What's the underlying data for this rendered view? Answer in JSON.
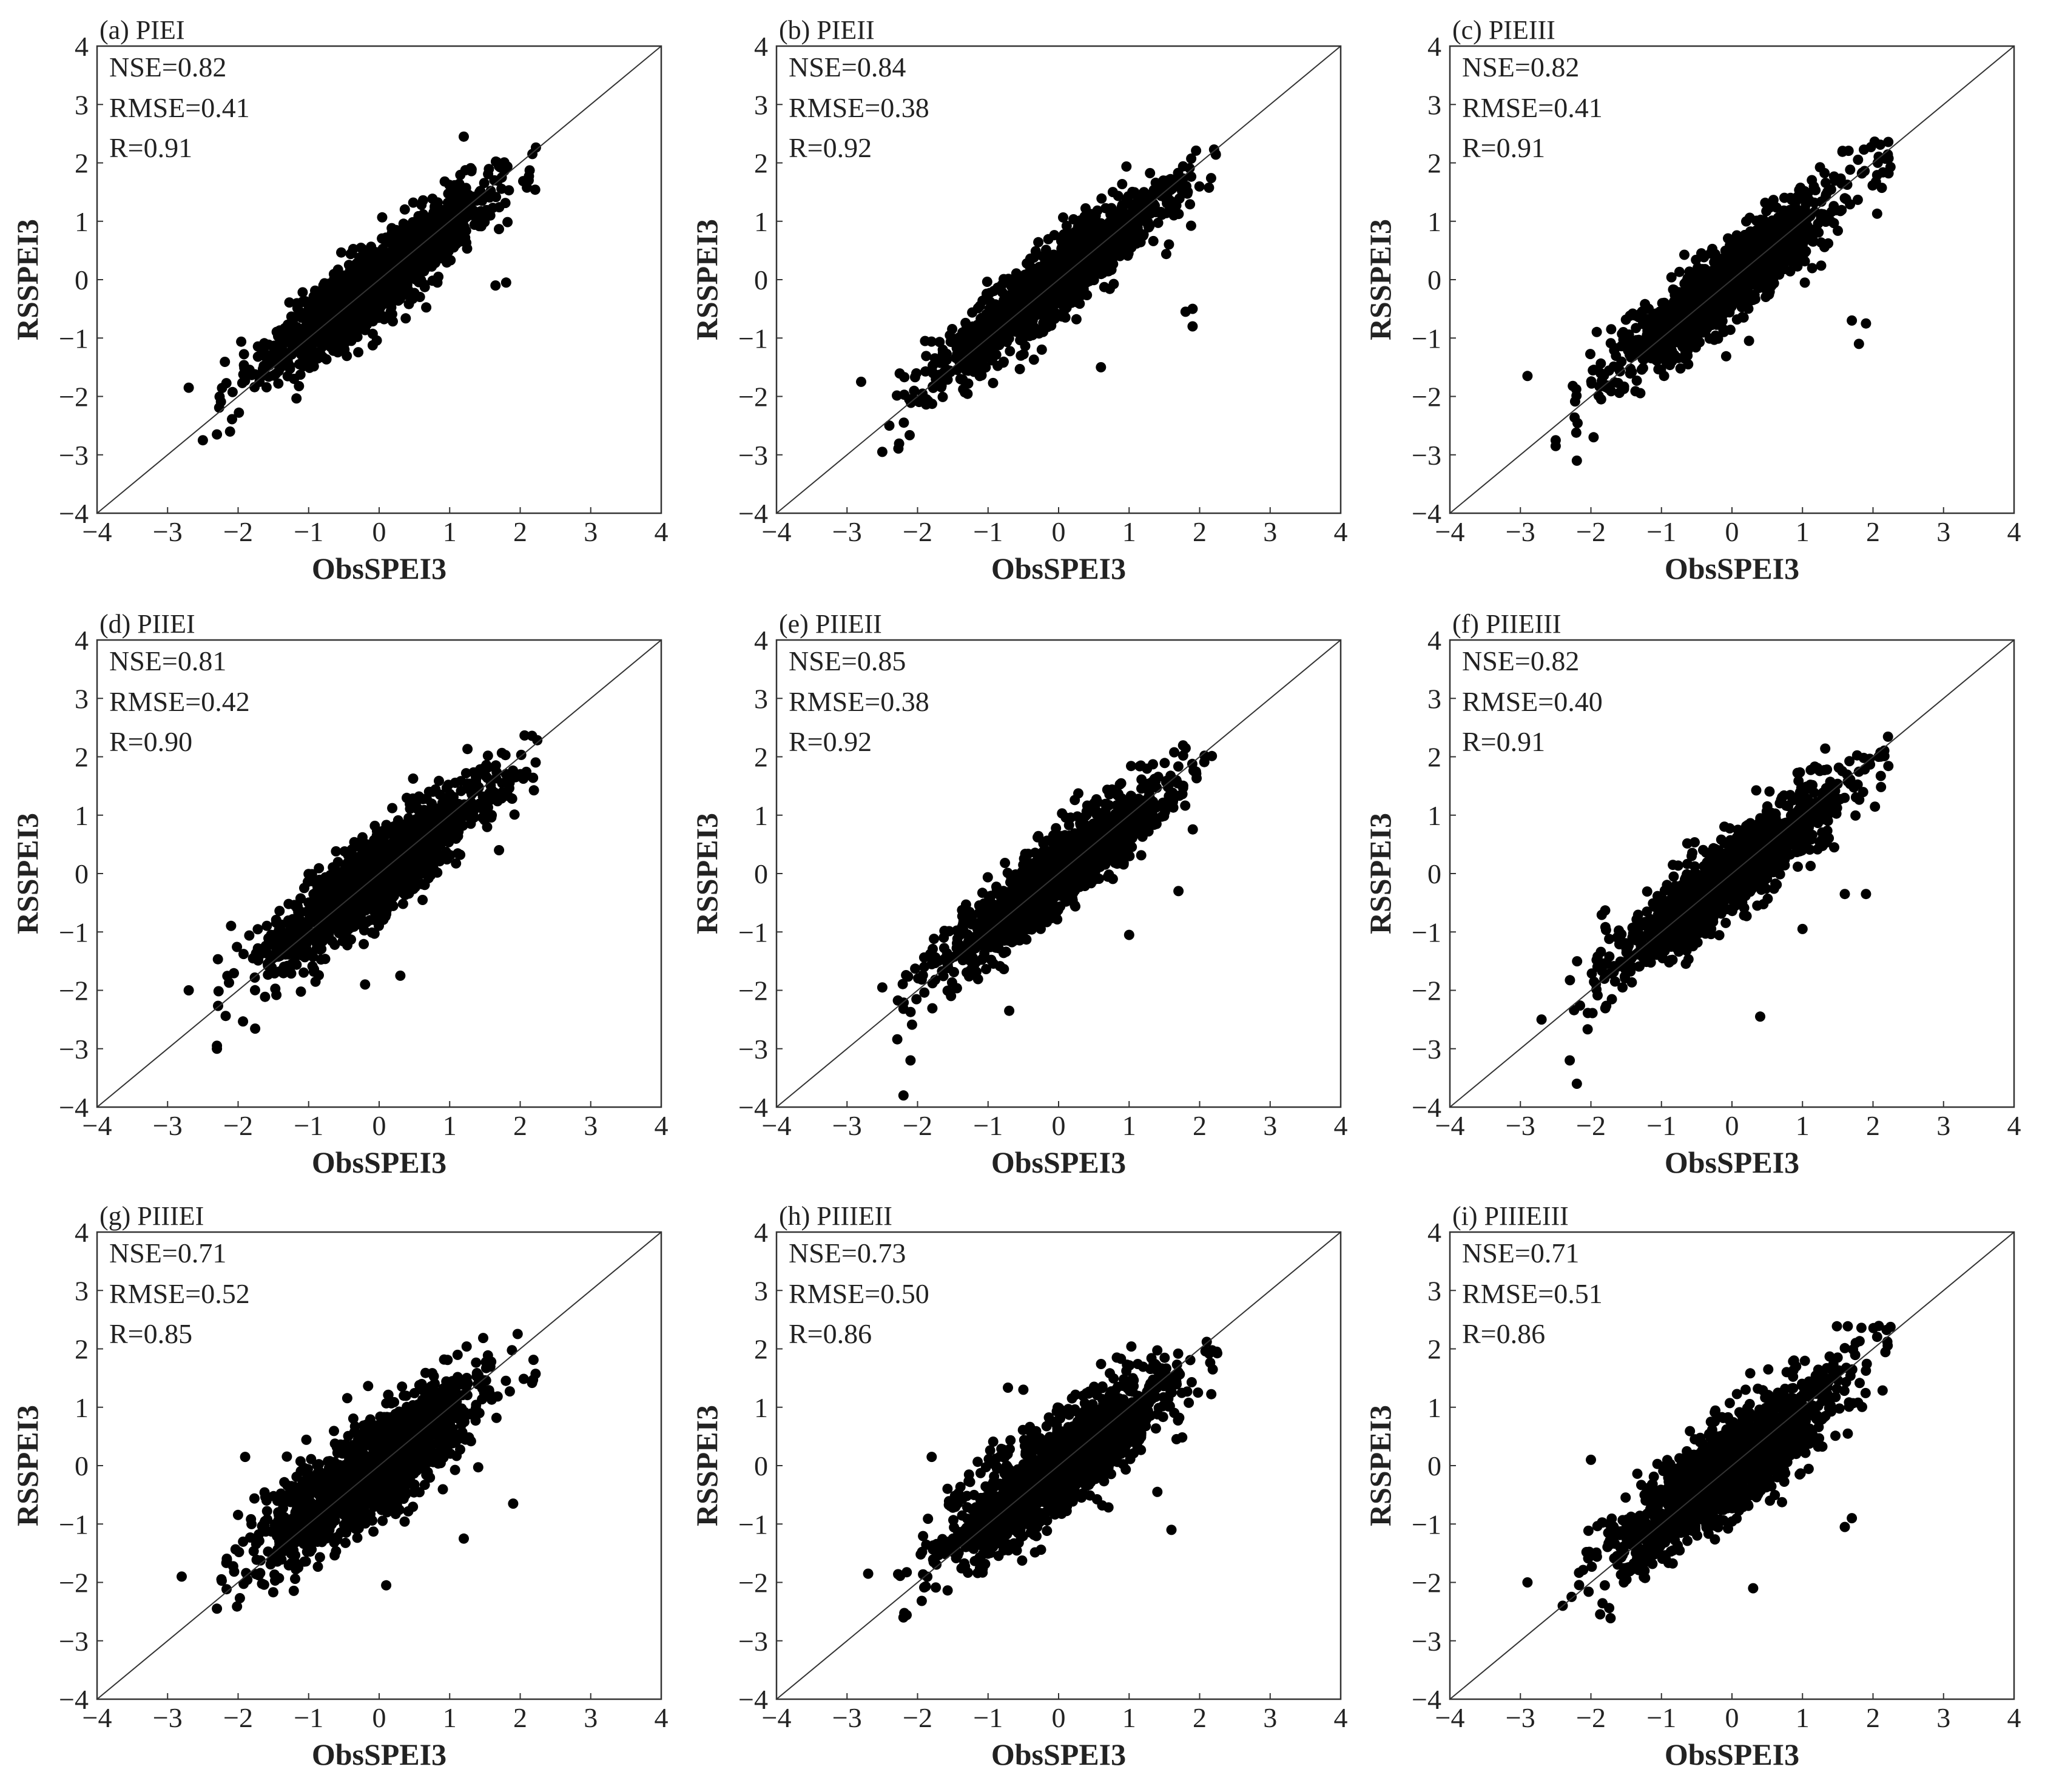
{
  "chart_data": [
    {
      "type": "scatter",
      "panel_label": "(a) PIEI",
      "xlabel": "ObsSPEI3",
      "ylabel": "RSSPEI3",
      "xlim": [
        -4,
        4
      ],
      "ylim": [
        -4,
        4
      ],
      "ticks": [
        "−4",
        "−3",
        "−2",
        "−1",
        "0",
        "1",
        "2",
        "3",
        "4"
      ],
      "stats": {
        "nse": "NSE=0.82",
        "rmse": "RMSE=0.41",
        "r": "R=0.91"
      },
      "series": [
        {
          "name": "points",
          "r": 0.91,
          "count": 1300,
          "seed": 11
        }
      ],
      "reference_line": "1:1",
      "outliers": [
        [
          -2.7,
          -1.85
        ],
        [
          -2.5,
          -2.75
        ],
        [
          -2.3,
          -2.65
        ],
        [
          1.8,
          -0.05
        ],
        [
          1.65,
          -0.1
        ],
        [
          1.2,
          2.45
        ]
      ]
    },
    {
      "type": "scatter",
      "panel_label": "(b) PIEII",
      "xlabel": "ObsSPEI3",
      "ylabel": "RSSPEI3",
      "xlim": [
        -4,
        4
      ],
      "ylim": [
        -4,
        4
      ],
      "ticks": [
        "−4",
        "−3",
        "−2",
        "−1",
        "0",
        "1",
        "2",
        "3",
        "4"
      ],
      "stats": {
        "nse": "NSE=0.84",
        "rmse": "RMSE=0.38",
        "r": "R=0.92"
      },
      "series": [
        {
          "name": "points",
          "r": 0.92,
          "count": 1300,
          "seed": 23
        }
      ],
      "reference_line": "1:1",
      "outliers": [
        [
          -2.8,
          -1.75
        ],
        [
          -2.5,
          -2.95
        ],
        [
          -2.4,
          -2.5
        ],
        [
          1.8,
          -0.55
        ],
        [
          1.9,
          -0.8
        ],
        [
          1.9,
          -0.5
        ],
        [
          0.6,
          -1.5
        ]
      ]
    },
    {
      "type": "scatter",
      "panel_label": "(c) PIEIII",
      "xlabel": "ObsSPEI3",
      "ylabel": "RSSPEI3",
      "xlim": [
        -4,
        4
      ],
      "ylim": [
        -4,
        4
      ],
      "ticks": [
        "−4",
        "−3",
        "−2",
        "−1",
        "0",
        "1",
        "2",
        "3",
        "4"
      ],
      "stats": {
        "nse": "NSE=0.82",
        "rmse": "RMSE=0.41",
        "r": "R=0.91"
      },
      "series": [
        {
          "name": "points",
          "r": 0.91,
          "count": 1300,
          "seed": 37
        }
      ],
      "reference_line": "1:1",
      "outliers": [
        [
          -2.9,
          -1.65
        ],
        [
          -2.5,
          -2.85
        ],
        [
          -2.2,
          -3.1
        ],
        [
          -2.5,
          -2.75
        ],
        [
          1.7,
          -0.7
        ],
        [
          1.8,
          -1.1
        ],
        [
          1.9,
          -0.75
        ]
      ]
    },
    {
      "type": "scatter",
      "panel_label": "(d) PIIEI",
      "xlabel": "ObsSPEI3",
      "ylabel": "RSSPEI3",
      "xlim": [
        -4,
        4
      ],
      "ylim": [
        -4,
        4
      ],
      "ticks": [
        "−4",
        "−3",
        "−2",
        "−1",
        "0",
        "1",
        "2",
        "3",
        "4"
      ],
      "stats": {
        "nse": "NSE=0.81",
        "rmse": "RMSE=0.42",
        "r": "R=0.90"
      },
      "series": [
        {
          "name": "points",
          "r": 0.9,
          "count": 1300,
          "seed": 41
        }
      ],
      "reference_line": "1:1",
      "outliers": [
        [
          -2.7,
          -2.0
        ],
        [
          -2.3,
          -2.95
        ],
        [
          -2.3,
          -3.0
        ],
        [
          -0.2,
          -1.9
        ],
        [
          0.3,
          -1.75
        ],
        [
          1.7,
          0.4
        ]
      ]
    },
    {
      "type": "scatter",
      "panel_label": "(e) PIIEII",
      "xlabel": "ObsSPEI3",
      "ylabel": "RSSPEI3",
      "xlim": [
        -4,
        4
      ],
      "ylim": [
        -4,
        4
      ],
      "ticks": [
        "−4",
        "−3",
        "−2",
        "−1",
        "0",
        "1",
        "2",
        "3",
        "4"
      ],
      "stats": {
        "nse": "NSE=0.85",
        "rmse": "RMSE=0.38",
        "r": "R=0.92"
      },
      "series": [
        {
          "name": "points",
          "r": 0.92,
          "count": 1300,
          "seed": 53
        }
      ],
      "reference_line": "1:1",
      "outliers": [
        [
          -2.2,
          -3.8
        ],
        [
          -2.5,
          -1.95
        ],
        [
          -2.1,
          -3.2
        ],
        [
          -0.7,
          -2.35
        ],
        [
          1.0,
          -1.05
        ],
        [
          1.7,
          -0.3
        ]
      ]
    },
    {
      "type": "scatter",
      "panel_label": "(f) PIIEIII",
      "xlabel": "ObsSPEI3",
      "ylabel": "RSSPEI3",
      "xlim": [
        -4,
        4
      ],
      "ylim": [
        -4,
        4
      ],
      "ticks": [
        "−4",
        "−3",
        "−2",
        "−1",
        "0",
        "1",
        "2",
        "3",
        "4"
      ],
      "stats": {
        "nse": "NSE=0.82",
        "rmse": "RMSE=0.40",
        "r": "R=0.91"
      },
      "series": [
        {
          "name": "points",
          "r": 0.91,
          "count": 1300,
          "seed": 67
        }
      ],
      "reference_line": "1:1",
      "outliers": [
        [
          -2.2,
          -3.6
        ],
        [
          -2.3,
          -3.2
        ],
        [
          -2.7,
          -2.5
        ],
        [
          0.4,
          -2.45
        ],
        [
          1.6,
          -0.35
        ],
        [
          1.9,
          -0.35
        ],
        [
          1.0,
          -0.95
        ]
      ]
    },
    {
      "type": "scatter",
      "panel_label": "(g) PIIIEI",
      "xlabel": "ObsSPEI3",
      "ylabel": "RSSPEI3",
      "xlim": [
        -4,
        4
      ],
      "ylim": [
        -4,
        4
      ],
      "ticks": [
        "−4",
        "−3",
        "−2",
        "−1",
        "0",
        "1",
        "2",
        "3",
        "4"
      ],
      "stats": {
        "nse": "NSE=0.71",
        "rmse": "RMSE=0.52",
        "r": "R=0.85"
      },
      "series": [
        {
          "name": "points",
          "r": 0.85,
          "count": 1400,
          "seed": 79
        }
      ],
      "reference_line": "1:1",
      "outliers": [
        [
          -2.8,
          -1.9
        ],
        [
          -2.3,
          -2.45
        ],
        [
          -1.9,
          0.15
        ],
        [
          0.1,
          -2.05
        ],
        [
          1.9,
          -0.65
        ],
        [
          1.2,
          -1.25
        ]
      ]
    },
    {
      "type": "scatter",
      "panel_label": "(h) PIIIEII",
      "xlabel": "ObsSPEI3",
      "ylabel": "RSSPEI3",
      "xlim": [
        -4,
        4
      ],
      "ylim": [
        -4,
        4
      ],
      "ticks": [
        "−4",
        "−3",
        "−2",
        "−1",
        "0",
        "1",
        "2",
        "3",
        "4"
      ],
      "stats": {
        "nse": "NSE=0.73",
        "rmse": "RMSE=0.50",
        "r": "R=0.86"
      },
      "series": [
        {
          "name": "points",
          "r": 0.86,
          "count": 1400,
          "seed": 83
        }
      ],
      "reference_line": "1:1",
      "outliers": [
        [
          -2.7,
          -1.85
        ],
        [
          -2.2,
          -2.6
        ],
        [
          -1.8,
          0.15
        ],
        [
          1.6,
          -1.1
        ],
        [
          1.4,
          -0.45
        ],
        [
          -0.5,
          1.3
        ]
      ]
    },
    {
      "type": "scatter",
      "panel_label": "(i) PIIIEIII",
      "xlabel": "ObsSPEI3",
      "ylabel": "RSSPEI3",
      "xlim": [
        -4,
        4
      ],
      "ylim": [
        -4,
        4
      ],
      "ticks": [
        "−4",
        "−3",
        "−2",
        "−1",
        "0",
        "1",
        "2",
        "3",
        "4"
      ],
      "stats": {
        "nse": "NSE=0.71",
        "rmse": "RMSE=0.51",
        "r": "R=0.86"
      },
      "series": [
        {
          "name": "points",
          "r": 0.86,
          "count": 1400,
          "seed": 97
        }
      ],
      "reference_line": "1:1",
      "outliers": [
        [
          -2.9,
          -2.0
        ],
        [
          -2.4,
          -2.4
        ],
        [
          -2.0,
          0.1
        ],
        [
          0.3,
          -2.1
        ],
        [
          1.7,
          -0.9
        ],
        [
          1.6,
          -1.05
        ]
      ]
    }
  ]
}
